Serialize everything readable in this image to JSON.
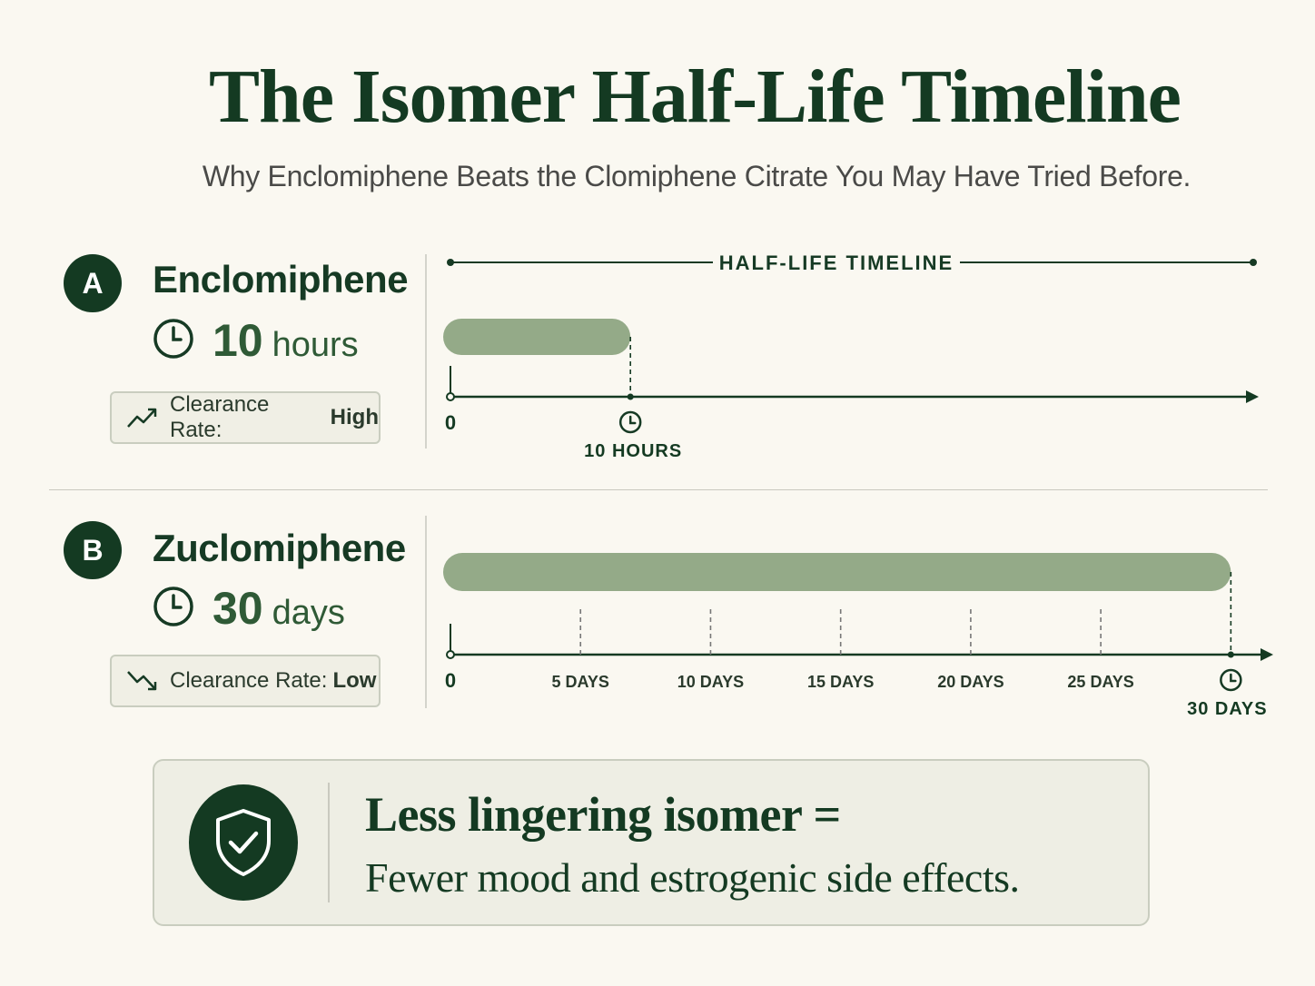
{
  "header": {
    "title": "The Isomer Half-Life Timeline",
    "subtitle": "Why Enclomiphene Beats the Clomiphene Citrate You May Have Tried Before."
  },
  "isomers": [
    {
      "badge": "A",
      "name": "Enclomiphene",
      "duration_value": "10",
      "duration_unit": "hours",
      "clearance_label": "Clearance Rate:",
      "clearance_value": "High",
      "clearance_icon": "trend-up-icon"
    },
    {
      "badge": "B",
      "name": "Zuclomiphene",
      "duration_value": "30",
      "duration_unit": "days",
      "clearance_label": "Clearance Rate:",
      "clearance_value": "Low",
      "clearance_icon": "trend-down-icon"
    }
  ],
  "callout": {
    "line1": "Less lingering isomer =",
    "line2": "Fewer mood and estrogenic side effects.",
    "icon": "shield-check-icon"
  },
  "chart_data": [
    {
      "type": "bar",
      "title": "HALF-LIFE TIMELINE",
      "series": [
        {
          "name": "Enclomiphene",
          "value": 10,
          "unit": "hours"
        }
      ],
      "x_ticks": [
        {
          "value": 0,
          "label": "0"
        },
        {
          "value": 10,
          "label": "10 HOURS"
        }
      ],
      "xlim": [
        0,
        44
      ],
      "grid": false
    },
    {
      "type": "bar",
      "series": [
        {
          "name": "Zuclomiphene",
          "value": 30,
          "unit": "days"
        }
      ],
      "x_ticks": [
        {
          "value": 0,
          "label": "0"
        },
        {
          "value": 5,
          "label": "5 DAYS"
        },
        {
          "value": 10,
          "label": "10 DAYS"
        },
        {
          "value": 15,
          "label": "15 DAYS"
        },
        {
          "value": 20,
          "label": "20 DAYS"
        },
        {
          "value": 25,
          "label": "25 DAYS"
        },
        {
          "value": 30,
          "label": "30 DAYS"
        }
      ],
      "xlim": [
        0,
        31
      ],
      "grid": false
    }
  ],
  "colors": {
    "dark_green": "#143a22",
    "bar_sage": "#94aa88",
    "background": "#faf8f1",
    "muted_text": "#4a4a48"
  }
}
